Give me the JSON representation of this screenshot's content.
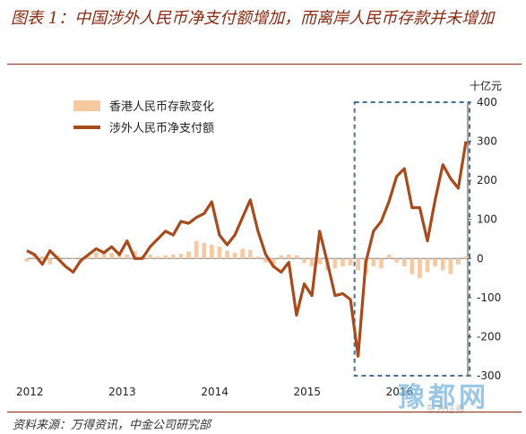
{
  "header": {
    "title": "图表 1：中国涉外人民币净支付额增加，而离岸人民币存款并未增加"
  },
  "footer": {
    "source": "资料来源：万得资讯，中金公司研究部"
  },
  "watermark": {
    "text": "豫都网",
    "small_text": "东方证券"
  },
  "colors": {
    "line": "#a84a1c",
    "bar": "#f7c9a1",
    "box": "#4a6f95",
    "title": "#8b2a10"
  },
  "chart_data": {
    "type": "bar+line",
    "unit_label": "十亿元",
    "ylim": [
      -300,
      400
    ],
    "yticks": [
      -300,
      -200,
      -100,
      0,
      100,
      200,
      300,
      400
    ],
    "x_tick_labels": [
      "2012",
      "2013",
      "2014",
      "2015",
      "2016"
    ],
    "x_tick_index": [
      0,
      12,
      24,
      36,
      48
    ],
    "legend_placement": "top-left",
    "highlight_box": {
      "start_index": 43,
      "end_index": 57,
      "y_top": 400,
      "y_bottom": -300
    },
    "series": [
      {
        "name": "香港人民币存款变化",
        "kind": "bar",
        "values": [
          -8,
          12,
          5,
          -15,
          8,
          3,
          2,
          -10,
          6,
          15,
          18,
          14,
          12,
          10,
          20,
          8,
          10,
          5,
          8,
          10,
          12,
          18,
          45,
          40,
          35,
          30,
          20,
          15,
          25,
          22,
          5,
          -10,
          -25,
          8,
          10,
          8,
          -12,
          -20,
          -15,
          -30,
          -25,
          -20,
          -18,
          -30,
          -40,
          -20,
          -25,
          10,
          -10,
          -20,
          -40,
          -50,
          -35,
          -20,
          -30,
          -40,
          -15,
          5
        ]
      },
      {
        "name": "涉外人民币净支付额",
        "kind": "line",
        "values": [
          20,
          10,
          -15,
          20,
          0,
          -20,
          -35,
          -5,
          10,
          25,
          15,
          30,
          10,
          45,
          0,
          0,
          30,
          50,
          70,
          60,
          95,
          90,
          105,
          115,
          145,
          60,
          35,
          60,
          105,
          150,
          70,
          10,
          -20,
          -35,
          -10,
          -145,
          -65,
          -95,
          70,
          -10,
          -95,
          -90,
          -105,
          -250,
          -10,
          70,
          95,
          145,
          210,
          230,
          130,
          130,
          45,
          150,
          240,
          205,
          180,
          300
        ]
      }
    ]
  }
}
